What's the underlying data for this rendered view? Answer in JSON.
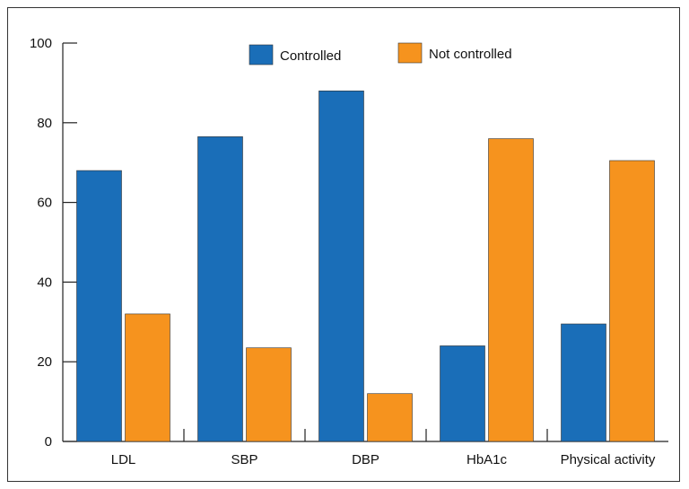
{
  "chart_data": {
    "type": "bar",
    "categories": [
      "LDL",
      "SBP",
      "DBP",
      "HbA1c",
      "Physical activity"
    ],
    "series": [
      {
        "name": "Controlled",
        "values": [
          68,
          76.5,
          88,
          24,
          29.5
        ],
        "color": "#1a6eb8"
      },
      {
        "name": "Not controlled",
        "values": [
          32,
          23.5,
          12,
          76,
          70.5
        ],
        "color": "#f6931e"
      }
    ],
    "title": "",
    "xlabel": "",
    "ylabel": "",
    "ylim": [
      0,
      100
    ],
    "yticks": [
      0,
      20,
      40,
      60,
      80,
      100
    ],
    "legend": "top-center",
    "grid": false
  }
}
